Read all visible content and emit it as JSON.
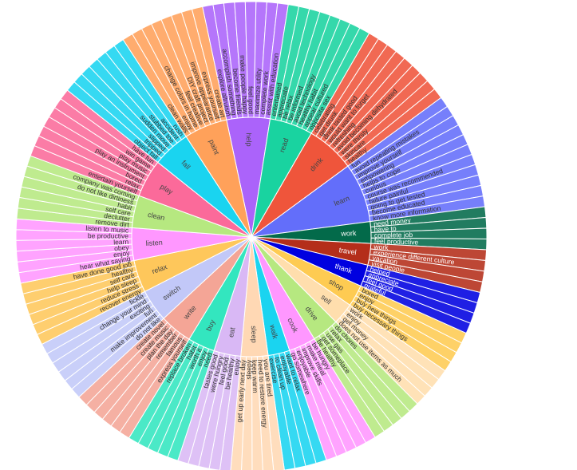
{
  "chart_data": {
    "type": "sunburst",
    "title": "",
    "center_label": "",
    "categories": [
      {
        "name": "help",
        "color": "#ab63fa",
        "leaves": [
          "explore altruism",
          "accomplish something",
          "become friends",
          "make people happy",
          "feel good",
          "maximize utility",
          "complete work",
          "assist with education"
        ]
      },
      {
        "name": "read",
        "color": "#19d3a0",
        "leaves": [
          "entertained",
          "appreciate",
          "be relax",
          "be informed",
          "avoid technology",
          "healthy habit",
          "appear cultured",
          "opposite sex"
        ]
      },
      {
        "name": "drink",
        "color": "#ef553b",
        "leaves": [
          "celebrating",
          "get drunk",
          "drink tasted good",
          "would want to forget",
          "refreshing",
          "avoid becoming dehydrated",
          "were thirsty",
          "skincare",
          "healthy"
        ]
      },
      {
        "name": "learn",
        "color": "#636efa",
        "leaves": [
          "fun",
          "avoid repeating mistakes",
          "improve yourself",
          "empowering",
          "helps to cope",
          "curious",
          "course was recommended",
          "failure painful",
          "going to get tested",
          "become educated",
          "know more information"
        ]
      },
      {
        "name": "work",
        "color": "#036a4a",
        "leaves": [
          "need money",
          "have to",
          "complete job",
          "feel productive"
        ]
      },
      {
        "name": "travel",
        "color": "#b42e1a",
        "leaves": [
          "work",
          "experience different culture",
          "vacation",
          "visit people"
        ]
      },
      {
        "name": "thank",
        "color": "#0000e0",
        "leaves": [
          "helped",
          "appreciate",
          "feel good",
          "grateful"
        ]
      },
      {
        "name": "shop",
        "color": "#fecb52",
        "leaves": [
          "bored",
          "enjoy",
          "buy new things",
          "buy necessary things"
        ]
      },
      {
        "name": "sell",
        "color": "#ffdead",
        "leaves": [
          "work",
          "enjoy",
          "get money",
          "does not use items as much"
        ]
      },
      {
        "name": "drive",
        "color": "#b6e880",
        "leaves": [
          "do chores",
          "relax",
          "use gas",
          "get someplace",
          "be healthy"
        ]
      },
      {
        "name": "cook",
        "color": "#ff97ff",
        "leaves": [
          "be hungry",
          "make meal",
          "improve skills",
          "enjoyable",
          "go somewhere"
        ]
      },
      {
        "name": "walk",
        "color": "#1ad4f0",
        "leaves": [
          "want to relax",
          "enjoyable",
          "to clean up",
          "exercise"
        ]
      },
      {
        "name": "sleep",
        "color": "#ffd8b4",
        "leaves": [
          "you are tired",
          "need to restore energy",
          "keep warm",
          "sleepy",
          "get up early next day"
        ]
      },
      {
        "name": "eat",
        "color": "#d9b8f5",
        "leaves": [
          "enjoy",
          "be healthy",
          "feel good",
          "were hungry",
          "tastes good"
        ]
      },
      {
        "name": "buy",
        "color": "#33e6bf",
        "leaves": [
          "need",
          "enjoy",
          "worth it",
          "habit",
          "replace broken"
        ]
      },
      {
        "name": "write",
        "color": "#f4a596",
        "leaves": [
          "express yourself",
          "famous",
          "remember",
          "plan the day",
          "create music",
          "create novel"
        ]
      },
      {
        "name": "switch",
        "color": "#c2c8f8",
        "leaves": [
          "do not like",
          "make improvement",
          "fun",
          "exciting",
          "change your mind",
          "fickle"
        ]
      },
      {
        "name": "relax",
        "color": "#fec75b",
        "leaves": [
          "recover energy",
          "reduce stress",
          "help sleep",
          "self care",
          "healthy",
          "have done good job"
        ]
      },
      {
        "name": "listen",
        "color": "#ff97ff",
        "leaves": [
          "hear what saying",
          "enjoy",
          "obey",
          "learn",
          "be productive",
          "listen to music"
        ]
      },
      {
        "name": "clean",
        "color": "#b6e880",
        "leaves": [
          "remove dirt",
          "declutter",
          "self care",
          "habit",
          "do not like dirtiness",
          "company was coming"
        ]
      },
      {
        "name": "play",
        "color": "#fb6a9a",
        "leaves": [
          "entertain yourself",
          "relax",
          "bored",
          "play an instrument",
          "play music",
          "win game",
          "have fun"
        ]
      },
      {
        "name": "fall",
        "color": "#1ad4f0",
        "leaves": [
          "object fall",
          "tripped",
          "slipped",
          "sudden move",
          "stubbed toe",
          "accident",
          "rush"
        ]
      },
      {
        "name": "paint",
        "color": "#ffa15a",
        "leaves": [
          "clean walls",
          "enjoy",
          "change colors in home",
          "feel creative",
          "DIY craft project",
          "improve appearance",
          "express yourself",
          "create art"
        ]
      }
    ]
  }
}
